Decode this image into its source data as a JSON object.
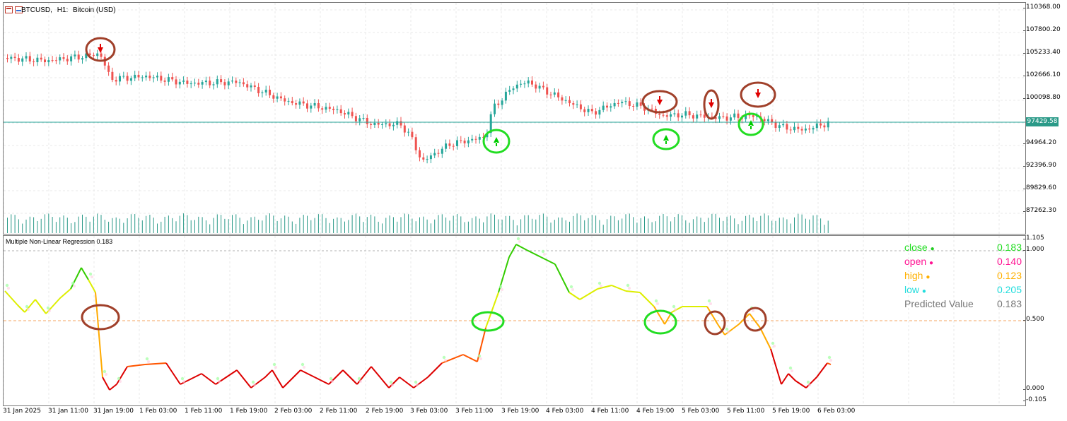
{
  "window": {
    "symbol": "BTCUSD,",
    "timeframe": "H1:",
    "description": "Bitcoin (USD)"
  },
  "price_axis": {
    "ticks": [
      "110368.00",
      "107800.20",
      "105233.40",
      "102666.10",
      "100098.80",
      "97429.58",
      "94964.20",
      "92396.90",
      "89829.60",
      "87262.30"
    ],
    "current_price": "97429.58",
    "current_price_color": "#2a9a88"
  },
  "indicator": {
    "name": "Multiple Non-Linear Regression 0.183",
    "axis_ticks": [
      "1.105",
      "1.000",
      "0.500",
      "0.000",
      "-0.105"
    ],
    "level": "0.500",
    "legend": [
      {
        "label": "close",
        "dot_color": "#22cc22",
        "label_color": "#22dd22",
        "value": "0.183",
        "value_color": "#22dd22"
      },
      {
        "label": "open",
        "dot_color": "#ff1493",
        "label_color": "#ff1493",
        "value": "0.140",
        "value_color": "#ff1493"
      },
      {
        "label": "high",
        "dot_color": "#ffb000",
        "label_color": "#ffb000",
        "value": "0.123",
        "value_color": "#ffb000"
      },
      {
        "label": "low",
        "dot_color": "#22dddd",
        "label_color": "#22dddd",
        "value": "0.205",
        "value_color": "#22dddd"
      },
      {
        "label": "Predicted Value",
        "dot_color": "",
        "label_color": "#777777",
        "value": "0.183",
        "value_color": "#777777"
      }
    ]
  },
  "time_axis": [
    "31 Jan 2025",
    "31 Jan 11:00",
    "31 Jan 19:00",
    "1 Feb 03:00",
    "1 Feb 11:00",
    "1 Feb 19:00",
    "2 Feb 03:00",
    "2 Feb 11:00",
    "2 Feb 19:00",
    "3 Feb 03:00",
    "3 Feb 11:00",
    "3 Feb 19:00",
    "4 Feb 03:00",
    "4 Feb 11:00",
    "4 Feb 19:00",
    "5 Feb 03:00",
    "5 Feb 11:00",
    "5 Feb 19:00",
    "6 Feb 03:00"
  ],
  "colors": {
    "bull": "#26a69a",
    "bear": "#ef5350",
    "volume": "#2a9a88",
    "sell_marker": "#e00000",
    "buy_marker": "#00cc00",
    "sell_circle": "#a0402a",
    "buy_circle": "#22dd22",
    "grid": "#e8e8e8"
  },
  "icons": [
    "window-icon",
    "sell-arrow-icon",
    "buy-arrow-icon"
  ]
}
